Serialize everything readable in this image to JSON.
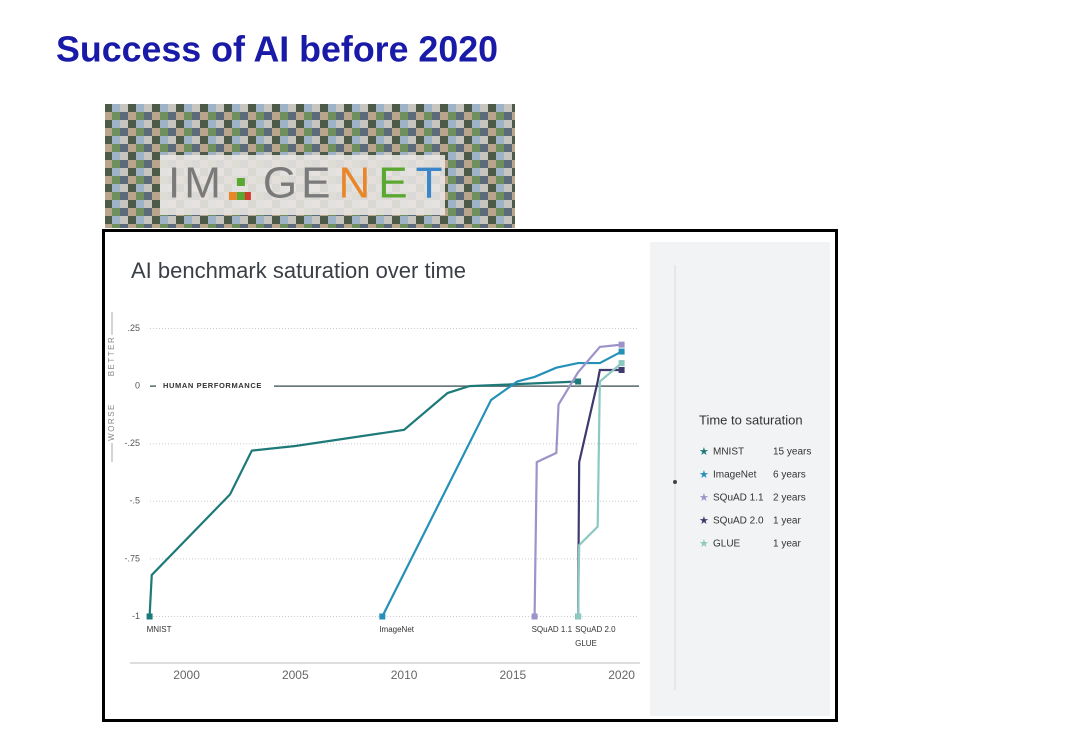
{
  "slide_title": "Success of AI before 2020",
  "logo": [
    {
      "text": "IM",
      "color": "#7a7a7a"
    },
    {
      "text": "GE",
      "color": "#7a7a7a"
    },
    {
      "text": "N",
      "color": "#e8862a"
    },
    {
      "text": "E",
      "color": "#5aa832"
    },
    {
      "text": "T",
      "color": "#3a86c8"
    }
  ],
  "chart_data": {
    "type": "line",
    "title": "AI benchmark saturation over time",
    "better_label": "BETTER",
    "worse_label": "WORSE",
    "reference_label": "HUMAN PERFORMANCE",
    "legend_title": "Time to saturation",
    "xlim": [
      1997.4,
      2020.8
    ],
    "xticks": [
      2000,
      2005,
      2010,
      2015,
      2020
    ],
    "ylim": [
      -1.05,
      0.3
    ],
    "yticks": [
      {
        "value": 0.25,
        "label": ".25"
      },
      0,
      {
        "value": -0.25,
        "label": "-.25"
      },
      {
        "value": -0.5,
        "label": "-.5"
      },
      {
        "value": -0.75,
        "label": "-.75"
      },
      -1
    ],
    "grid": true,
    "series": [
      {
        "name": "MNIST",
        "label": "15 years",
        "color": "#1d7a78",
        "x": [
          1998.3,
          1998.4,
          2002,
          2003,
          2005,
          2010,
          2012,
          2013,
          2018
        ],
        "values": [
          -1,
          -0.82,
          -0.47,
          -0.28,
          -0.26,
          -0.19,
          -0.03,
          0,
          0.02
        ]
      },
      {
        "name": "ImageNet",
        "label": "6 years",
        "color": "#2590b8",
        "x": [
          2009,
          2014,
          2015.2,
          2016,
          2017,
          2018,
          2019,
          2020
        ],
        "values": [
          -1,
          -0.06,
          0.02,
          0.04,
          0.08,
          0.1,
          0.1,
          0.15
        ]
      },
      {
        "name": "SQuAD 1.1",
        "label": "2 years",
        "color": "#9d93c9",
        "x": [
          2016,
          2016.1,
          2017,
          2017.1,
          2018,
          2019,
          2020
        ],
        "values": [
          -1,
          -0.33,
          -0.29,
          -0.08,
          0.06,
          0.17,
          0.18
        ]
      },
      {
        "name": "SQuAD 2.0",
        "label": "1 year",
        "color": "#3d3a6e",
        "x": [
          2018,
          2018.05,
          2018.9,
          2019,
          2020
        ],
        "values": [
          -1,
          -0.33,
          0.02,
          0.07,
          0.07
        ]
      },
      {
        "name": "GLUE",
        "label": "1 year",
        "color": "#8cc9c0",
        "x": [
          2018,
          2018.05,
          2018.9,
          2019,
          2020
        ],
        "values": [
          -1,
          -0.69,
          -0.61,
          0.02,
          0.1
        ]
      }
    ]
  }
}
